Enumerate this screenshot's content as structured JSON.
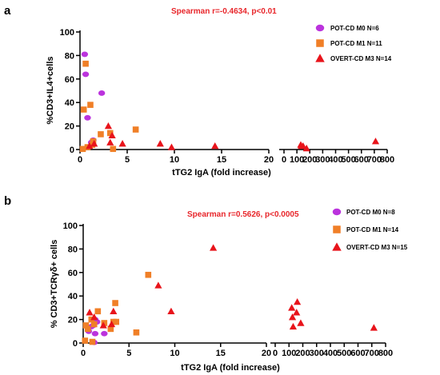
{
  "colors": {
    "m0": "#bb33dd",
    "m1": "#f07f27",
    "m3": "#e8141b",
    "stat": "#e8262b"
  },
  "chart_data": [
    {
      "type": "scatter",
      "panel": "a",
      "annotation": "Spearman r=-0.4634, p<0.01",
      "ylabel": "%CD3+IL4+cells",
      "xlabel": "tTG2 IgA (fold increase)",
      "ylim": [
        0,
        100
      ],
      "yticks": [
        "0",
        "20",
        "40",
        "60",
        "80",
        "100"
      ],
      "x_segments": [
        {
          "range": [
            0,
            20
          ],
          "ticks": [
            "0",
            "5",
            "10",
            "15",
            "20"
          ]
        },
        {
          "range": [
            0,
            800
          ],
          "ticks": [
            "0",
            "100",
            "200",
            "300",
            "400",
            "500",
            "600",
            "700",
            "800"
          ]
        }
      ],
      "series": [
        {
          "name": "POT-CD M0 N=6",
          "marker": "circle",
          "points": [
            [
              0.5,
              81
            ],
            [
              0.6,
              64
            ],
            [
              0.8,
              27
            ],
            [
              1.2,
              6
            ],
            [
              1.4,
              8
            ],
            [
              2.3,
              48
            ]
          ]
        },
        {
          "name": "POT-CD M1 N=11",
          "marker": "square",
          "points": [
            [
              0.3,
              0.5
            ],
            [
              0.4,
              34
            ],
            [
              0.6,
              73
            ],
            [
              0.8,
              2
            ],
            [
              1.1,
              38
            ],
            [
              1.3,
              4
            ],
            [
              1.4,
              7
            ],
            [
              2.2,
              13
            ],
            [
              3.2,
              14
            ],
            [
              3.5,
              0.5
            ],
            [
              5.9,
              17
            ]
          ]
        },
        {
          "name": "OVERT-CD M3 N=14",
          "marker": "triangle",
          "points": [
            [
              1.0,
              3
            ],
            [
              1.5,
              5
            ],
            [
              3.0,
              20
            ],
            [
              3.2,
              6
            ],
            [
              3.4,
              12
            ],
            [
              4.5,
              5
            ],
            [
              8.5,
              5
            ],
            [
              9.7,
              2
            ],
            [
              14.3,
              3
            ],
            [
              130,
              4
            ],
            [
              135,
              3
            ],
            [
              148,
              3
            ],
            [
              175,
              1
            ],
            [
              710,
              7
            ]
          ]
        }
      ]
    },
    {
      "type": "scatter",
      "panel": "b",
      "annotation": "Spearman r=0.5626, p<0.0005",
      "ylabel": "% CD3+TCRγδ+ cells",
      "xlabel": "tTG2 IgA (fold increase)",
      "ylim": [
        0,
        100
      ],
      "yticks": [
        "0",
        "20",
        "40",
        "60",
        "80",
        "100"
      ],
      "x_segments": [
        {
          "range": [
            0,
            20
          ],
          "ticks": [
            "0",
            "5",
            "10",
            "15",
            "20"
          ]
        },
        {
          "range": [
            0,
            800
          ],
          "ticks": [
            "0",
            "100",
            "200",
            "300",
            "400",
            "500",
            "600",
            "700",
            "800"
          ]
        }
      ],
      "series": [
        {
          "name": "POT-CD M0 N=8",
          "marker": "circle",
          "points": [
            [
              0.6,
              10
            ],
            [
              0.9,
              14
            ],
            [
              1.1,
              15
            ],
            [
              1.2,
              0.5
            ],
            [
              1.3,
              20
            ],
            [
              1.3,
              8
            ],
            [
              1.5,
              18
            ],
            [
              2.3,
              8
            ]
          ]
        },
        {
          "name": "POT-CD M1 N=14",
          "marker": "square",
          "points": [
            [
              0.2,
              2
            ],
            [
              0.3,
              15
            ],
            [
              0.5,
              12
            ],
            [
              0.9,
              20
            ],
            [
              1.0,
              1
            ],
            [
              1.2,
              16
            ],
            [
              1.6,
              27
            ],
            [
              2.3,
              17
            ],
            [
              3.0,
              12
            ],
            [
              3.3,
              18
            ],
            [
              3.5,
              34
            ],
            [
              3.6,
              18
            ],
            [
              5.8,
              9
            ],
            [
              7.1,
              58
            ]
          ]
        },
        {
          "name": "OVERT-CD M3 N=15",
          "marker": "triangle",
          "points": [
            [
              0.7,
              26
            ],
            [
              1.2,
              22
            ],
            [
              2.2,
              15
            ],
            [
              3.1,
              16
            ],
            [
              3.3,
              27
            ],
            [
              8.2,
              49
            ],
            [
              9.6,
              27
            ],
            [
              14.2,
              81
            ],
            [
              120,
              30
            ],
            [
              125,
              22
            ],
            [
              130,
              14
            ],
            [
              160,
              35
            ],
            [
              155,
              26
            ],
            [
              185,
              17
            ],
            [
              715,
              13
            ]
          ]
        }
      ]
    }
  ]
}
